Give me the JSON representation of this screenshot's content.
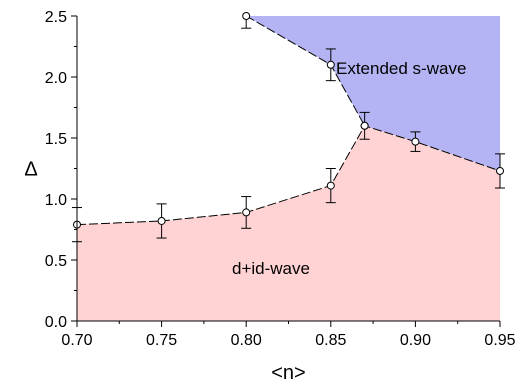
{
  "chart_data": {
    "type": "area",
    "title": "",
    "xlabel": "<n>",
    "ylabel": "Δ",
    "xlim": [
      0.7,
      0.95
    ],
    "ylim": [
      0.0,
      2.5
    ],
    "x_ticks": [
      0.7,
      0.75,
      0.8,
      0.85,
      0.9,
      0.95
    ],
    "x_tick_labels": [
      "0.70",
      "0.75",
      "0.80",
      "0.85",
      "0.90",
      "0.95"
    ],
    "y_ticks": [
      0.0,
      0.5,
      1.0,
      1.5,
      2.0,
      2.5
    ],
    "y_tick_labels": [
      "0.0",
      "0.5",
      "1.0",
      "1.5",
      "2.0",
      "2.5"
    ],
    "grid": false,
    "legend": "none",
    "regions": [
      {
        "label": "d+id-wave",
        "color": "#ffd3d3"
      },
      {
        "label": "Extended s-wave",
        "color": "#b4b4f4"
      }
    ],
    "series": [
      {
        "x": [
          0.7,
          0.75,
          0.8,
          0.85,
          0.87,
          0.9,
          0.95
        ],
        "y": [
          0.79,
          0.82,
          0.89,
          1.11,
          1.6,
          1.47,
          1.23
        ],
        "err": [
          0.14,
          0.14,
          0.13,
          0.14,
          0.11,
          0.08,
          0.14
        ]
      },
      {
        "x": [
          0.8,
          0.85,
          0.87
        ],
        "y": [
          2.5,
          2.1,
          1.6
        ],
        "err": [
          0.1,
          0.13,
          0.0
        ]
      }
    ]
  }
}
